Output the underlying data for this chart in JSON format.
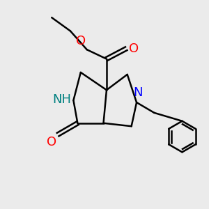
{
  "bg_color": "#ebebeb",
  "atom_colors": {
    "C": "#000000",
    "N_blue": "#0000ff",
    "N_teal": "#008080",
    "O": "#ff0000",
    "H": "#000000"
  },
  "bond_color": "#000000",
  "bond_width": 1.8,
  "font_size_atoms": 13
}
